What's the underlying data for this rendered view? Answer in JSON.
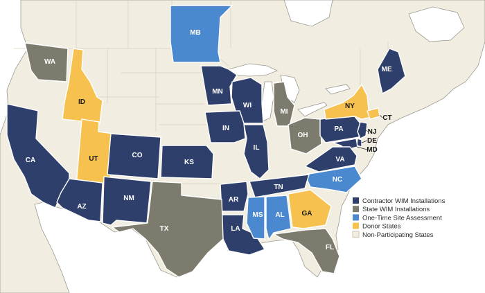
{
  "colors": {
    "ocean": "#ffffff",
    "land": "#f1ede0",
    "contractor": "#2e3f6b",
    "state": "#7c7b6e",
    "onetime": "#4a88cf",
    "donor": "#f6c14e",
    "nonpart": "#f1ede0",
    "border": "#ffffff",
    "outline": "#9a9890"
  },
  "legend": [
    {
      "key": "contractor",
      "label": "Contractor WIM Installations"
    },
    {
      "key": "state",
      "label": "State WIM Installations"
    },
    {
      "key": "onetime",
      "label": "One-Time Site Assessment"
    },
    {
      "key": "donor",
      "label": "Donor States"
    },
    {
      "key": "nonpart",
      "label": "Non-Participating States"
    }
  ],
  "states": [
    {
      "id": "WA",
      "label": "WA",
      "category": "state"
    },
    {
      "id": "ID",
      "label": "ID",
      "category": "donor"
    },
    {
      "id": "UT",
      "label": "UT",
      "category": "donor"
    },
    {
      "id": "CA",
      "label": "CA",
      "category": "contractor"
    },
    {
      "id": "AZ",
      "label": "AZ",
      "category": "contractor"
    },
    {
      "id": "NM",
      "label": "NM",
      "category": "contractor"
    },
    {
      "id": "CO",
      "label": "CO",
      "category": "contractor"
    },
    {
      "id": "KS",
      "label": "KS",
      "category": "contractor"
    },
    {
      "id": "MB",
      "label": "MB",
      "category": "onetime"
    },
    {
      "id": "MN",
      "label": "MN",
      "category": "contractor"
    },
    {
      "id": "WI",
      "label": "WI",
      "category": "contractor"
    },
    {
      "id": "IN",
      "label": "IN",
      "category": "contractor"
    },
    {
      "id": "IL",
      "label": "IL",
      "category": "contractor"
    },
    {
      "id": "MI",
      "label": "MI",
      "category": "state"
    },
    {
      "id": "OH",
      "label": "OH",
      "category": "state"
    },
    {
      "id": "PA",
      "label": "PA",
      "category": "contractor"
    },
    {
      "id": "NY",
      "label": "NY",
      "category": "donor"
    },
    {
      "id": "CT",
      "label": "CT",
      "category": "donor"
    },
    {
      "id": "NJ",
      "label": "NJ",
      "category": "contractor"
    },
    {
      "id": "DE",
      "label": "DE",
      "category": "contractor"
    },
    {
      "id": "MD",
      "label": "MD",
      "category": "contractor"
    },
    {
      "id": "VA",
      "label": "VA",
      "category": "contractor"
    },
    {
      "id": "NC",
      "label": "NC",
      "category": "onetime"
    },
    {
      "id": "TN",
      "label": "TN",
      "category": "contractor"
    },
    {
      "id": "AR",
      "label": "AR",
      "category": "contractor"
    },
    {
      "id": "LA",
      "label": "LA",
      "category": "contractor"
    },
    {
      "id": "MS",
      "label": "MS",
      "category": "onetime"
    },
    {
      "id": "AL",
      "label": "AL",
      "category": "onetime"
    },
    {
      "id": "GA",
      "label": "GA",
      "category": "donor"
    },
    {
      "id": "FL",
      "label": "FL",
      "category": "state"
    },
    {
      "id": "TX",
      "label": "TX",
      "category": "state"
    },
    {
      "id": "ME",
      "label": "ME",
      "category": "contractor"
    }
  ]
}
